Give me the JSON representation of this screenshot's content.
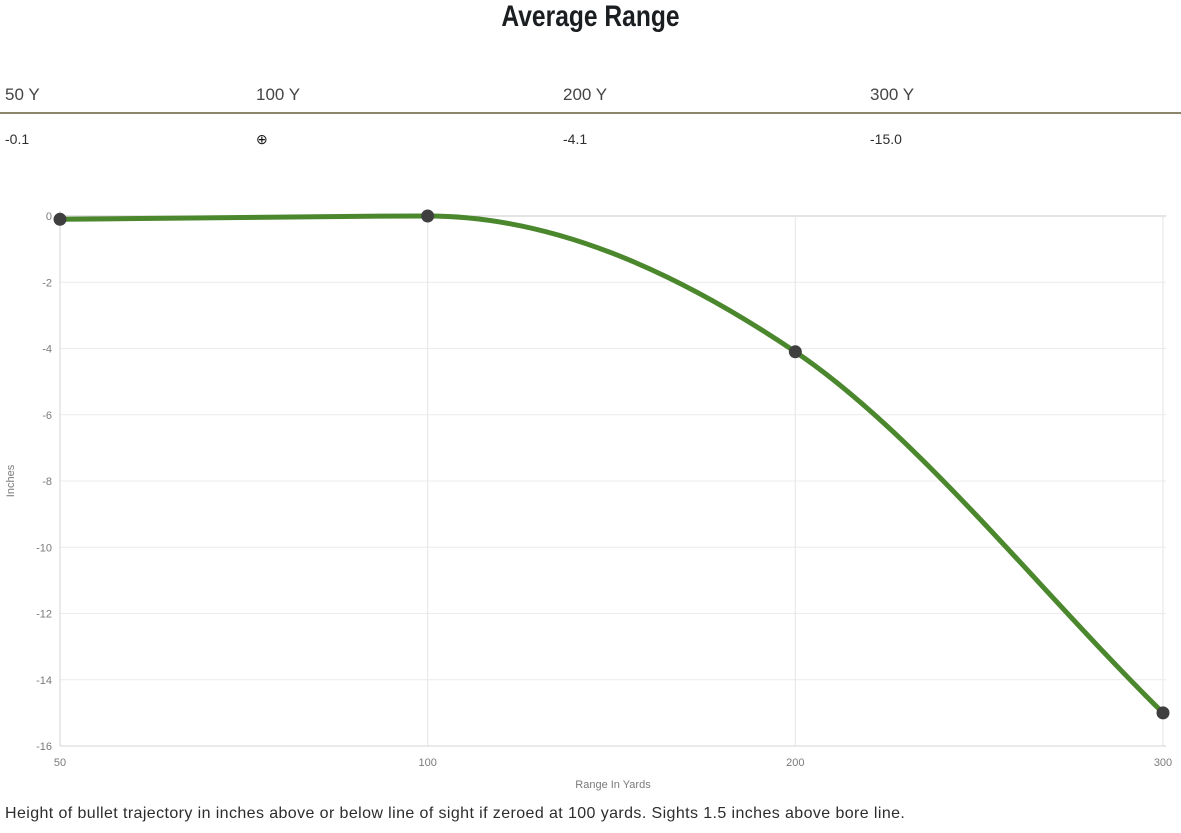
{
  "title": "Average Range",
  "summary": {
    "columns": [
      {
        "label": "50 Y",
        "value": "-0.1"
      },
      {
        "label": "100 Y",
        "value": "⊕"
      },
      {
        "label": "200 Y",
        "value": "-4.1"
      },
      {
        "label": "300 Y",
        "value": "-15.0"
      }
    ]
  },
  "chart_data": {
    "type": "line",
    "title": "Average Range",
    "x": [
      50,
      100,
      200,
      300
    ],
    "categories": [
      "50",
      "100",
      "200",
      "300"
    ],
    "series": [
      {
        "name": "Height of bullet trajectory",
        "values": [
          -0.1,
          0,
          -4.1,
          -15.0
        ]
      }
    ],
    "xlabel": "Range In Yards",
    "ylabel": "Inches",
    "ylim": [
      -16,
      0
    ],
    "yticks": [
      0,
      -2,
      -4,
      -6,
      -8,
      -10,
      -12,
      -14,
      -16
    ],
    "x_axis_type": "category",
    "grid": true,
    "legend": "none",
    "line_color": "#4b872d",
    "point_color": "#3f3f3f",
    "gridline_color": "#ececec",
    "zero_line_color": "#c9c9c9",
    "axis_line_color": "#d4d4d4"
  },
  "caption": "Height of bullet trajectory in inches above or below line of sight if zeroed at 100 yards. Sights 1.5 inches above bore line."
}
